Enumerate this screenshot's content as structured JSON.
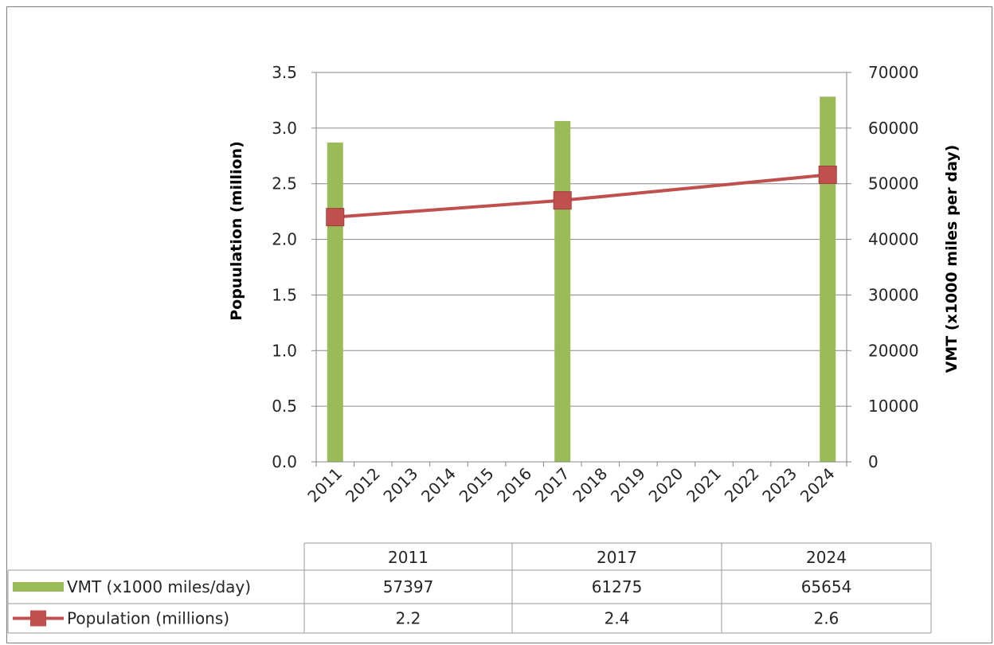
{
  "chart_data": {
    "type": "bar",
    "x": [
      "2011",
      "2012",
      "2013",
      "2014",
      "2015",
      "2016",
      "2017",
      "2018",
      "2019",
      "2020",
      "2021",
      "2022",
      "2023",
      "2024"
    ],
    "series": [
      {
        "name": "VMT (x1000 miles/day)",
        "chart_type": "bar",
        "axis": "right",
        "color": "#9bbb59",
        "points": [
          {
            "x": "2011",
            "y": 57397
          },
          {
            "x": "2017",
            "y": 61275
          },
          {
            "x": "2024",
            "y": 65654
          }
        ]
      },
      {
        "name": "Population (millions)",
        "chart_type": "line",
        "axis": "left",
        "color": "#c0504d",
        "marker": "square",
        "points": [
          {
            "x": "2011",
            "y": 2.2
          },
          {
            "x": "2017",
            "y": 2.35
          },
          {
            "x": "2024",
            "y": 2.58
          }
        ]
      }
    ],
    "ylabel": "Popuulation  (million)",
    "y2label": "VMT (x1000 miles per day)",
    "ylim": [
      0,
      3.5
    ],
    "y2lim": [
      0,
      70000
    ],
    "y_ticks": [
      "0.0",
      "0.5",
      "1.0",
      "1.5",
      "2.0",
      "2.5",
      "3.0",
      "3.5"
    ],
    "y2_ticks": [
      "0",
      "10000",
      "20000",
      "30000",
      "40000",
      "50000",
      "60000",
      "70000"
    ],
    "grid": true,
    "legend": "data-table",
    "data_table": {
      "columns": [
        "2011",
        "2017",
        "2024"
      ],
      "rows": [
        {
          "label": "VMT (x1000 miles/day)",
          "values": [
            "57397",
            "61275",
            "65654"
          ]
        },
        {
          "label": "Population (millions)",
          "values": [
            "2.2",
            "2.4",
            "2.6"
          ]
        }
      ]
    }
  }
}
